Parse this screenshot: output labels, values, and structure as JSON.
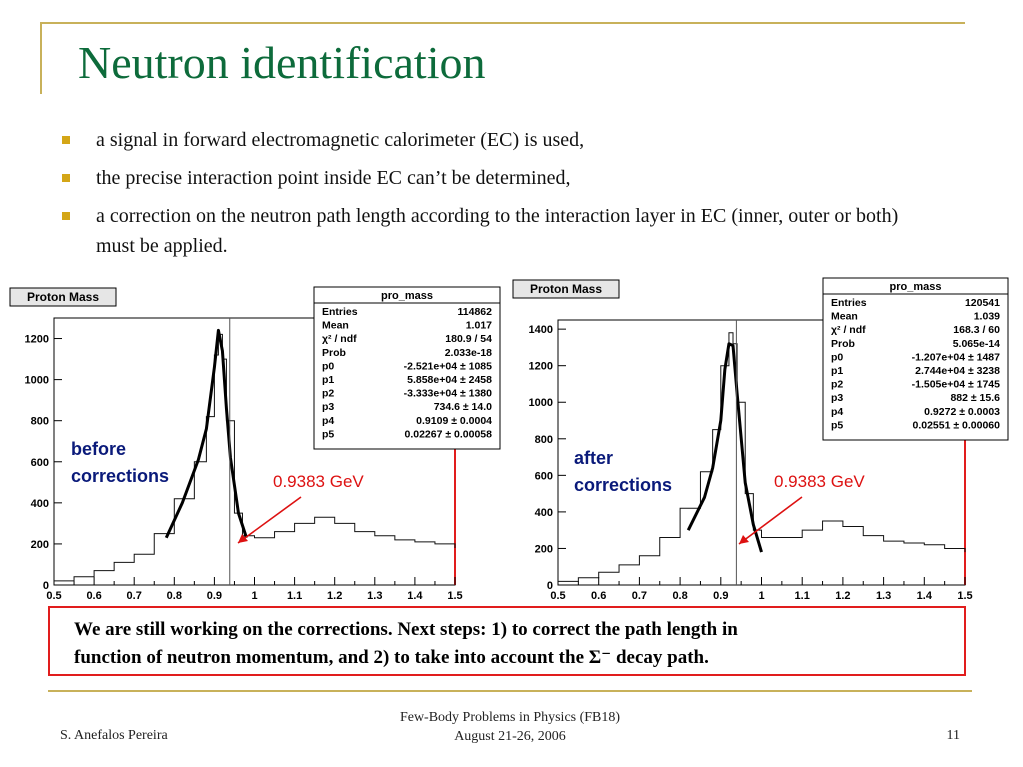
{
  "slide": {
    "title": "Neutron identification",
    "bullets": [
      "a signal in forward electromagnetic calorimeter (EC) is used,",
      "the precise interaction point inside EC can’t be determined,",
      "a correction on the neutron path length according to the interaction layer in EC (inner, outer or both) must be applied."
    ],
    "note_line1": "We are still working on the corrections. Next steps: 1) to correct the path length in",
    "note_line2": "function of neutron momentum, and 2) to take into account the Σ⁻ decay path.",
    "footer": {
      "author": "S. Anefalos Pereira",
      "conference": "Few-Body Problems in Physics (FB18)",
      "dates": "August 21-26, 2006",
      "page": "11"
    }
  },
  "chart_data": [
    {
      "type": "line",
      "title": "Proton Mass",
      "panel_label": "before corrections",
      "annotation": "0.9383 GeV",
      "marker_x": 0.9383,
      "xlim": [
        0.5,
        1.5
      ],
      "ylim": [
        0,
        1300
      ],
      "xticks": [
        "0.5",
        "0.6",
        "0.7",
        "0.8",
        "0.9",
        "1",
        "1.1",
        "1.2",
        "1.3",
        "1.4",
        "1.5"
      ],
      "yticks": [
        "0",
        "200",
        "400",
        "600",
        "800",
        "1000",
        "1200"
      ],
      "series": [
        {
          "x": [
            0.5,
            0.55,
            0.6,
            0.65,
            0.7,
            0.75,
            0.8,
            0.85,
            0.88,
            0.9,
            0.91,
            0.92,
            0.93,
            0.95,
            0.97,
            1.0,
            1.05,
            1.1,
            1.15,
            1.2,
            1.25,
            1.3,
            1.35,
            1.4,
            1.45,
            1.5
          ],
          "values": [
            20,
            40,
            70,
            110,
            150,
            250,
            420,
            600,
            820,
            1120,
            1220,
            1100,
            800,
            350,
            240,
            230,
            260,
            300,
            330,
            300,
            260,
            240,
            220,
            210,
            200,
            180
          ]
        }
      ],
      "fit": {
        "x": [
          0.78,
          0.82,
          0.86,
          0.88,
          0.9,
          0.91,
          0.92,
          0.93,
          0.94,
          0.96,
          0.98
        ],
        "values": [
          230,
          400,
          610,
          760,
          1060,
          1240,
          1140,
          860,
          620,
          350,
          230
        ]
      },
      "stats": {
        "header": "pro_mass",
        "rows": [
          [
            "Entries",
            "114862"
          ],
          [
            "Mean",
            "1.017"
          ],
          [
            "χ² / ndf",
            "180.9 / 54"
          ],
          [
            "Prob",
            "2.033e-18"
          ],
          [
            "p0",
            "-2.521e+04 ± 1085"
          ],
          [
            "p1",
            "5.858e+04 ± 2458"
          ],
          [
            "p2",
            "-3.333e+04 ± 1380"
          ],
          [
            "p3",
            "734.6 ± 14.0"
          ],
          [
            "p4",
            "0.9109 ± 0.0004"
          ],
          [
            "p5",
            "0.02267 ± 0.00058"
          ]
        ]
      }
    },
    {
      "type": "line",
      "title": "Proton Mass",
      "panel_label": "after corrections",
      "annotation": "0.9383 GeV",
      "marker_x": 0.9383,
      "xlim": [
        0.5,
        1.5
      ],
      "ylim": [
        0,
        1450
      ],
      "xticks": [
        "0.5",
        "0.6",
        "0.7",
        "0.8",
        "0.9",
        "1",
        "1.1",
        "1.2",
        "1.3",
        "1.4",
        "1.5"
      ],
      "yticks": [
        "0",
        "200",
        "400",
        "600",
        "800",
        "1000",
        "1200",
        "1400"
      ],
      "series": [
        {
          "x": [
            0.5,
            0.55,
            0.6,
            0.65,
            0.7,
            0.75,
            0.8,
            0.85,
            0.88,
            0.9,
            0.92,
            0.93,
            0.94,
            0.96,
            0.98,
            1.0,
            1.05,
            1.1,
            1.15,
            1.2,
            1.25,
            1.3,
            1.35,
            1.4,
            1.45,
            1.5
          ],
          "values": [
            20,
            40,
            70,
            110,
            160,
            260,
            420,
            620,
            850,
            1200,
            1380,
            1320,
            1000,
            500,
            300,
            260,
            260,
            300,
            350,
            320,
            270,
            240,
            230,
            220,
            200,
            180
          ]
        }
      ],
      "fit": {
        "x": [
          0.82,
          0.86,
          0.88,
          0.9,
          0.91,
          0.92,
          0.93,
          0.94,
          0.96,
          0.98,
          1.0
        ],
        "values": [
          300,
          480,
          640,
          900,
          1180,
          1320,
          1310,
          1050,
          560,
          330,
          180
        ]
      },
      "stats": {
        "header": "pro_mass",
        "rows": [
          [
            "Entries",
            "120541"
          ],
          [
            "Mean",
            "1.039"
          ],
          [
            "χ² / ndf",
            "168.3 / 60"
          ],
          [
            "Prob",
            "5.065e-14"
          ],
          [
            "p0",
            "-1.207e+04 ± 1487"
          ],
          [
            "p1",
            "2.744e+04 ± 3238"
          ],
          [
            "p2",
            "-1.505e+04 ± 1745"
          ],
          [
            "p3",
            "882 ± 15.6"
          ],
          [
            "p4",
            "0.9272 ± 0.0003"
          ],
          [
            "p5",
            "0.02551 ± 0.00060"
          ]
        ]
      }
    }
  ]
}
